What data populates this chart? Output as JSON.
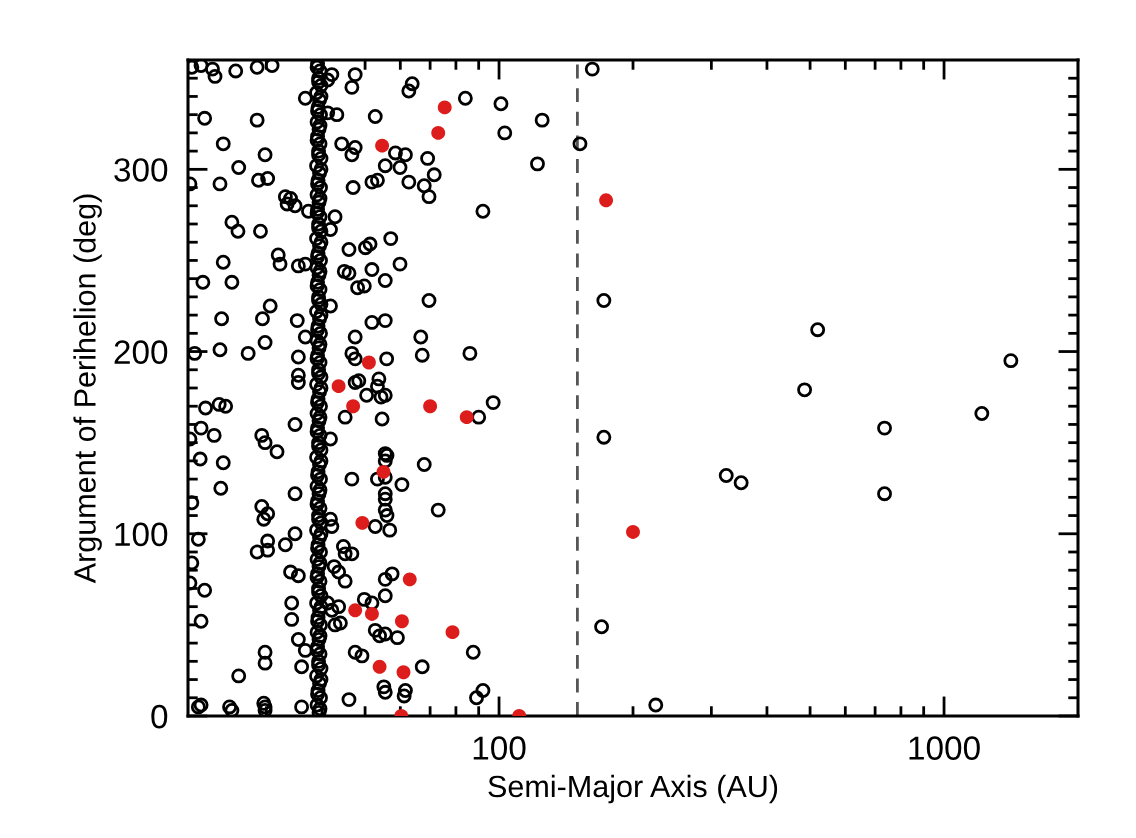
{
  "chart_data": {
    "type": "scatter",
    "xlabel": "Semi-Major Axis (AU)",
    "ylabel": "Argument of Perihelion (deg)",
    "log": "x",
    "xlim": [
      20,
      2000
    ],
    "ylim": [
      0,
      360
    ],
    "xticks": [
      {
        "value": 30,
        "label": null
      },
      {
        "value": 40,
        "label": null
      },
      {
        "value": 50,
        "label": null
      },
      {
        "value": 60,
        "label": null
      },
      {
        "value": 70,
        "label": null
      },
      {
        "value": 80,
        "label": null
      },
      {
        "value": 90,
        "label": null
      },
      100,
      {
        "value": 200,
        "label": null
      },
      {
        "value": 300,
        "label": null
      },
      {
        "value": 400,
        "label": null
      },
      {
        "value": 500,
        "label": null
      },
      {
        "value": 600,
        "label": null
      },
      {
        "value": 700,
        "label": null
      },
      {
        "value": 800,
        "label": null
      },
      {
        "value": 900,
        "label": null
      },
      1000
    ],
    "yticks": [
      0,
      {
        "value": 10,
        "label": null
      },
      {
        "value": 20,
        "label": null
      },
      {
        "value": 30,
        "label": null
      },
      {
        "value": 40,
        "label": null
      },
      {
        "value": 50,
        "label": null
      },
      {
        "value": 60,
        "label": null
      },
      {
        "value": 70,
        "label": null
      },
      {
        "value": 80,
        "label": null
      },
      {
        "value": 90,
        "label": null
      },
      100,
      {
        "value": 110,
        "label": null
      },
      {
        "value": 120,
        "label": null
      },
      {
        "value": 130,
        "label": null
      },
      {
        "value": 140,
        "label": null
      },
      {
        "value": 150,
        "label": null
      },
      {
        "value": 160,
        "label": null
      },
      {
        "value": 170,
        "label": null
      },
      {
        "value": 180,
        "label": null
      },
      {
        "value": 190,
        "label": null
      },
      200,
      {
        "value": 210,
        "label": null
      },
      {
        "value": 220,
        "label": null
      },
      {
        "value": 230,
        "label": null
      },
      {
        "value": 240,
        "label": null
      },
      {
        "value": 250,
        "label": null
      },
      {
        "value": 260,
        "label": null
      },
      {
        "value": 270,
        "label": null
      },
      {
        "value": 280,
        "label": null
      },
      {
        "value": 290,
        "label": null
      },
      300,
      {
        "value": 310,
        "label": null
      },
      {
        "value": 320,
        "label": null
      },
      {
        "value": 330,
        "label": null
      },
      {
        "value": 340,
        "label": null
      },
      {
        "value": 350,
        "label": null
      }
    ],
    "grid": false,
    "legend": false,
    "marker": "circle",
    "ref_lines": [
      {
        "axis": "x",
        "value": 150,
        "color": "#555555",
        "line_style": "dashed"
      }
    ],
    "series": [
      {
        "color": "#000000",
        "x": [
          20.4,
          21.4,
          22.7,
          23,
          25.6,
          28.6,
          30.9,
          21.8,
          28.6,
          36.7,
          24,
          29.8,
          26,
          30.2,
          28.8,
          23.6,
          20.2,
          33.1,
          34,
          33.4,
          34.8,
          37.3,
          25.1,
          25.9,
          29.1,
          31.9,
          32.2,
          24,
          35.4,
          36.7,
          21.6,
          25.1,
          30.6,
          29.4,
          23.8,
          35.2,
          29.8,
          23.6,
          20.7,
          27.3,
          35.4,
          35.4,
          35.4,
          36.7,
          21.9,
          23.5,
          24.3,
          41.2,
          42.1,
          47.5,
          46.7,
          63.8,
          62.7,
          41.2,
          43.2,
          52.7,
          44.3,
          47.5,
          46.7,
          58.5,
          61.6,
          55.5,
          59.9,
          69.1,
          71.5,
          53.3,
          51.8,
          62.7,
          67.9,
          69.6,
          47,
          42.8,
          41.8,
          51.3,
          57.1,
          46,
          50.1,
          59.9,
          51.8,
          46,
          44.9,
          49.8,
          55.5,
          69.6,
          41.8,
          48.1,
          51.8,
          55.5,
          47.5,
          46.7,
          47.5,
          66.7,
          67.2,
          86,
          55.9,
          54.3,
          53.7,
          47.5,
          48.4,
          21.4,
          22.9,
          21.3,
          24,
          23.7,
          20.2,
          29.3,
          29.8,
          31.7,
          29.3,
          30.2,
          29.6,
          34.8,
          34.8,
          20.4,
          21.1,
          20.4,
          20.2,
          21.8,
          21.4,
          26,
          29.8,
          29.8,
          28.6,
          30.2,
          30.2,
          33.1,
          34.8,
          34,
          35.4,
          34.2,
          34.2,
          35.4,
          36.7,
          36,
          21.1,
          21.4,
          24.8,
          25.1,
          29.6,
          29.8,
          29.8,
          36,
          50.4,
          53.3,
          55.5,
          54.6,
          45.1,
          41.8,
          46.7,
          53.3,
          55.5,
          55.5,
          56,
          55.5,
          55.5,
          55.5,
          55.5,
          56,
          60.5,
          67.9,
          52.7,
          56.8,
          41.8,
          42.1,
          44.7,
          45.1,
          46.7,
          42.6,
          43.6,
          55.5,
          57.5,
          45.1,
          51.8,
          49.8,
          55.5,
          43.6,
          41.2,
          42.1,
          42.8,
          44,
          52.7,
          55.5,
          59.1,
          53.9,
          47.5,
          49.2,
          67.2,
          55.1,
          61.6,
          61.2,
          55.5,
          46,
          162,
          84,
          101,
          125,
          103,
          122,
          152,
          92,
          172,
          520,
          1413,
          486,
          97,
          90,
          1216,
          735,
          172,
          324,
          350,
          735,
          73,
          87.5,
          170,
          92,
          89,
          225,
          39.4,
          39.0,
          39.7,
          39.2,
          39.5,
          38.9,
          39.8,
          39.3,
          39.6,
          39.1,
          39.4,
          39.0,
          39.7,
          39.2,
          39.5,
          38.9,
          39.8,
          39.3,
          39.6,
          39.1,
          39.4,
          39.0,
          39.7,
          39.2,
          39.5,
          38.9,
          39.8,
          39.3,
          39.6,
          39.1,
          39.4,
          39.0,
          39.7,
          39.2,
          39.5,
          38.9,
          39.8,
          39.3,
          39.6,
          39.1,
          39.4,
          39.0,
          39.7,
          39.2,
          39.5,
          38.9,
          39.8,
          39.3,
          39.6,
          39.1,
          39.4,
          39.0,
          39.7,
          39.2,
          39.5,
          38.9,
          39.8,
          39.3,
          39.6,
          39.1,
          39.4,
          39.0,
          39.7,
          39.2,
          39.5,
          38.9,
          39.8,
          39.3,
          39.6,
          39.1,
          39.4,
          39.0,
          39.7,
          39.2,
          39.5,
          38.9,
          39.8,
          39.3,
          39.6,
          39.1,
          39.4,
          39.0,
          39.7,
          39.2,
          39.5,
          38.9,
          39.8,
          39.3,
          39.6,
          39.1,
          39.6,
          39.1,
          39.8,
          39.3,
          39.0,
          39.6,
          39.1,
          39.8,
          39.3,
          39.0,
          39.6,
          39.1,
          39.8,
          39.3,
          39.0,
          39.6,
          39.1,
          39.8,
          39.3,
          39.0,
          39.6,
          39.1,
          39.8,
          39.3,
          39.0,
          39.6,
          39.1,
          39.8,
          39.3,
          39.0,
          39.6,
          39.1,
          39.8,
          39.3,
          39.0,
          39.6,
          39.1,
          39.8,
          39.3,
          39.0,
          39.6,
          39.1,
          39.8,
          39.3,
          39.0
        ],
        "values": [
          356,
          357,
          355,
          351,
          354,
          356,
          357,
          328,
          327,
          339,
          314,
          308,
          301,
          295,
          294,
          292,
          292,
          285,
          284,
          281,
          280,
          277,
          271,
          266,
          266,
          253,
          248,
          249,
          247,
          248,
          238,
          238,
          225,
          218,
          218,
          217,
          205,
          201,
          199,
          199,
          197,
          187,
          183,
          208,
          169,
          171,
          170,
          349,
          352,
          352,
          345,
          347,
          343,
          331,
          330,
          329,
          314,
          312,
          308,
          309,
          308,
          302,
          301,
          306,
          297,
          294,
          293,
          293,
          291,
          285,
          290,
          274,
          267,
          259,
          262,
          256,
          257,
          248,
          245,
          243,
          244,
          236,
          239,
          228,
          225,
          235,
          216,
          217,
          208,
          199,
          196,
          208,
          198,
          199,
          196,
          175,
          185,
          183,
          184,
          158,
          154,
          141,
          139,
          125,
          152,
          154,
          150,
          145,
          115,
          111,
          108,
          122,
          160,
          117,
          97,
          84,
          73,
          69,
          52,
          22,
          35,
          29,
          90,
          91,
          96,
          94,
          100,
          79,
          77,
          62,
          53,
          42,
          36,
          27,
          5,
          6,
          5,
          3,
          7,
          5,
          3,
          5,
          176,
          181,
          176,
          163,
          164,
          152,
          130,
          130,
          131,
          144,
          143,
          140,
          122,
          119,
          113,
          110,
          127,
          138,
          104,
          102,
          108,
          104,
          93,
          89,
          89,
          82,
          79,
          75,
          78,
          74,
          62,
          64,
          66,
          60,
          62,
          58,
          50,
          51,
          47,
          45,
          43,
          44,
          35,
          33,
          27,
          16,
          14,
          11,
          13,
          9,
          355,
          339,
          336,
          327,
          320,
          303,
          314,
          277,
          228,
          212,
          195,
          179,
          172,
          164,
          166,
          158,
          153,
          132,
          128,
          122,
          113,
          35,
          49,
          14,
          10,
          6,
          2,
          6,
          10,
          14,
          18,
          22,
          26,
          30,
          34,
          38,
          42,
          46,
          50,
          54,
          58,
          62,
          66,
          70,
          74,
          78,
          82,
          86,
          90,
          94,
          98,
          102,
          106,
          110,
          114,
          118,
          122,
          126,
          130,
          134,
          138,
          142,
          146,
          150,
          154,
          158,
          162,
          166,
          170,
          174,
          178,
          182,
          186,
          190,
          194,
          198,
          202,
          206,
          210,
          214,
          218,
          222,
          226,
          230,
          234,
          238,
          242,
          246,
          250,
          254,
          258,
          262,
          266,
          270,
          274,
          278,
          282,
          286,
          290,
          294,
          298,
          302,
          306,
          310,
          314,
          318,
          322,
          326,
          330,
          334,
          338,
          342,
          346,
          350,
          354,
          358,
          4,
          12,
          20,
          28,
          36,
          44,
          52,
          60,
          68,
          76,
          84,
          92,
          100,
          108,
          116,
          124,
          132,
          140,
          148,
          156,
          164,
          172,
          180,
          188,
          196,
          204,
          212,
          220,
          228,
          236,
          244,
          252,
          260,
          268,
          276,
          284,
          292,
          300,
          308,
          316,
          324,
          332,
          340,
          348,
          356
        ]
      },
      {
        "color": "#dd1c1c",
        "x": [
          75.5,
          73,
          54.6,
          174,
          51,
          43.6,
          47,
          70,
          84.6,
          55,
          49.3,
          200,
          63,
          47.5,
          51.8,
          60.5,
          78.6,
          53.9,
          61,
          60.3,
          111
        ],
        "values": [
          334,
          320,
          313,
          283,
          194,
          181,
          170,
          170,
          164,
          134,
          106,
          101,
          75,
          58,
          56,
          52,
          46,
          27,
          24,
          0,
          0
        ]
      }
    ]
  }
}
